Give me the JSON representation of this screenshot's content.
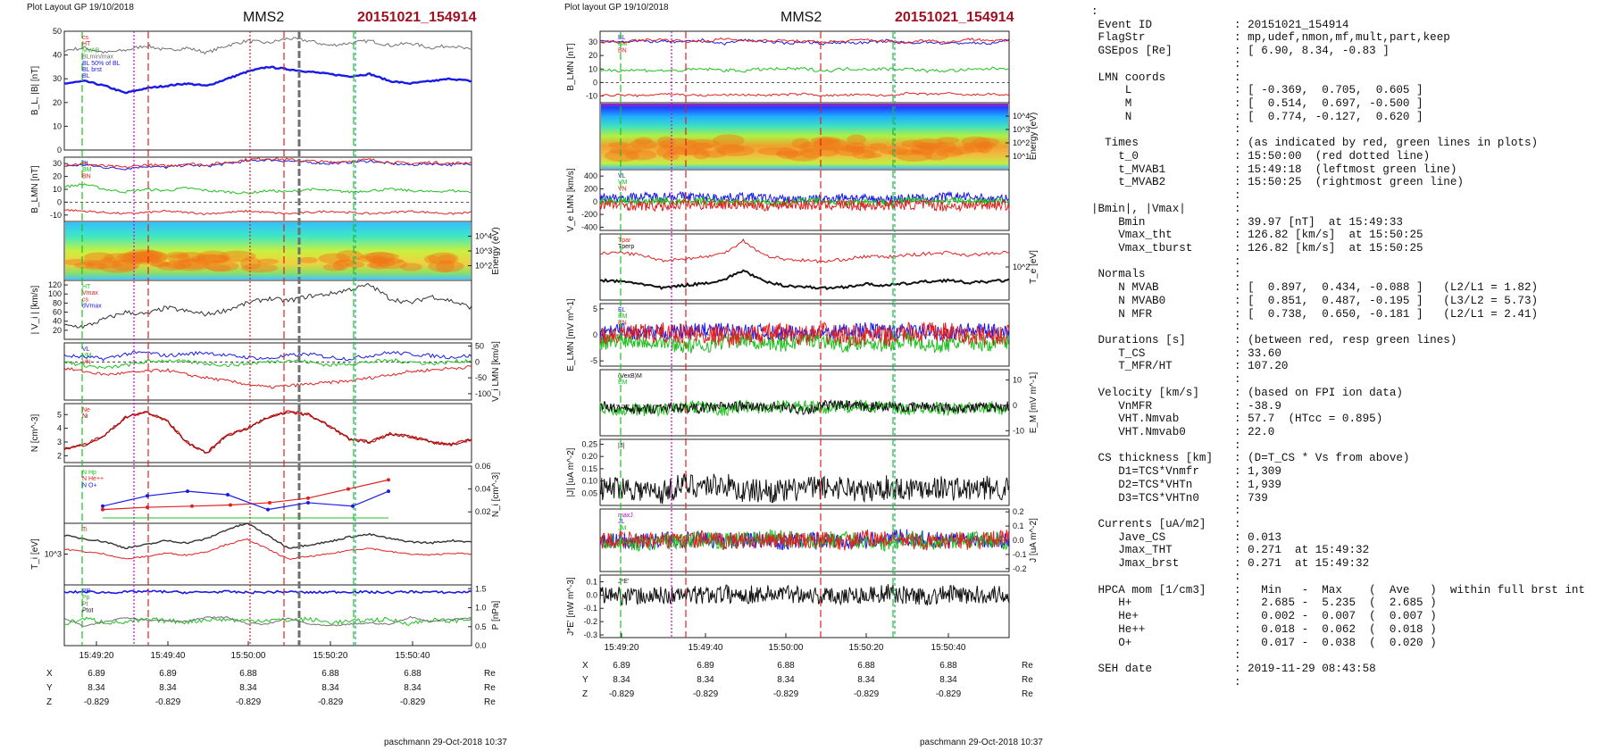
{
  "left_figure": {
    "header": "Plot Layout GP 19/10/2018",
    "sc": "MMS2",
    "event": "20151021_154914",
    "footer": "paschmann 29-Oct-2018 10:37",
    "time_ticks": [
      "15:49:20",
      "15:49:40",
      "15:50:00",
      "15:50:20",
      "15:50:40"
    ],
    "pos_rows": [
      {
        "label": "X",
        "values": [
          "6.89",
          "6.89",
          "6.88",
          "6.88",
          "6.88"
        ],
        "unit": "Re"
      },
      {
        "label": "Y",
        "values": [
          "8.34",
          "8.34",
          "8.34",
          "8.34",
          "8.34"
        ],
        "unit": "Re"
      },
      {
        "label": "Z",
        "values": [
          "-0.829",
          "-0.829",
          "-0.829",
          "-0.829",
          "-0.829"
        ],
        "unit": "Re"
      }
    ]
  },
  "right_figure": {
    "header": "Plot layout GP 19/10/2018",
    "sc": "MMS2",
    "event": "20151021_154914",
    "footer": "paschmann 29-Oct-2018 10:37",
    "time_ticks": [
      "15:49:20",
      "15:49:40",
      "15:50:00",
      "15:50:20",
      "15:50:40"
    ],
    "pos_rows": [
      {
        "label": "X",
        "values": [
          "6.89",
          "6.89",
          "6.88",
          "6.88",
          "6.88"
        ],
        "unit": "Re"
      },
      {
        "label": "Y",
        "values": [
          "8.34",
          "8.34",
          "8.34",
          "8.34",
          "8.34"
        ],
        "unit": "Re"
      },
      {
        "label": "Z",
        "values": [
          "-0.829",
          "-0.829",
          "-0.829",
          "-0.829",
          "-0.829"
        ],
        "unit": "Re"
      }
    ]
  },
  "colors": {
    "red": "#e02020",
    "green": "#20c020",
    "blue": "#1a1ae6",
    "black": "#111111",
    "gray": "#707070",
    "magenta": "#d000d0",
    "darkred": "#8a0a0a",
    "teal": "#20a0a0"
  },
  "chart_data": [
    {
      "type": "line",
      "ylabel": "B_L, |B| [nT]",
      "ylim": [
        0,
        50
      ],
      "yticks": [
        "0",
        "10",
        "20",
        "30",
        "40",
        "50"
      ],
      "legend": [
        "cs",
        "HT",
        "MVAB",
        "BLmin/max",
        "BL 50% of BL",
        "BL brst",
        "BL"
      ],
      "series": [
        {
          "name": "|B|",
          "values": [
            42,
            43,
            41,
            42,
            44,
            42,
            43,
            41,
            44,
            46,
            45,
            47,
            46,
            44,
            45,
            46,
            44,
            45,
            43,
            44,
            42
          ]
        },
        {
          "name": "BL",
          "values": [
            28,
            29,
            27,
            24,
            26,
            27,
            28,
            27,
            30,
            33,
            35,
            34,
            33,
            32,
            31,
            32,
            29,
            28,
            29,
            30,
            29
          ]
        }
      ]
    },
    {
      "type": "line",
      "ylabel": "B_LMN [nT]",
      "ylim": [
        -15,
        35
      ],
      "yticks": [
        "-10",
        "0",
        "10",
        "20",
        "30"
      ],
      "legend": [
        "BL",
        "BM",
        "BN"
      ],
      "series": [
        {
          "name": "BL",
          "values": [
            28,
            29,
            27,
            26,
            28,
            27,
            29,
            28,
            30,
            32,
            33,
            32,
            31,
            30,
            31,
            32,
            30,
            29,
            30,
            29,
            30
          ]
        },
        {
          "name": "BM",
          "values": [
            12,
            14,
            10,
            8,
            10,
            9,
            11,
            9,
            8,
            7,
            9,
            8,
            10,
            9,
            8,
            9,
            10,
            9,
            8,
            9,
            8
          ]
        },
        {
          "name": "BN",
          "values": [
            -6,
            -7,
            -8,
            -9,
            -8,
            -7,
            -8,
            -9,
            -8,
            -7,
            -8,
            -9,
            -8,
            -7,
            -8,
            -9,
            -8,
            -7,
            -8,
            -9,
            -8
          ]
        }
      ]
    },
    {
      "type": "heatmap",
      "ylabel": "Energy (eV)",
      "yticks": [
        "10^2",
        "10^3",
        "10^4"
      ]
    },
    {
      "type": "line",
      "ylabel": "| V_i | [km/s]",
      "ylim": [
        0,
        130
      ],
      "yticks": [
        "20",
        "40",
        "60",
        "80",
        "100",
        "120"
      ],
      "legend": [
        "HT",
        "Vmax",
        "cs",
        "dVmax"
      ],
      "series": [
        {
          "name": "|Vi|",
          "values": [
            30,
            28,
            45,
            60,
            55,
            70,
            62,
            55,
            65,
            80,
            90,
            85,
            95,
            100,
            110,
            120,
            90,
            80,
            95,
            85,
            70
          ]
        }
      ]
    },
    {
      "type": "line",
      "ylabel": "V_i LMN [km/s]",
      "ylim": [
        -120,
        60
      ],
      "yticks": [
        "50",
        "0",
        "-50",
        "-100"
      ],
      "legend": [
        "VL",
        "VM",
        "VN"
      ],
      "series": [
        {
          "name": "VL",
          "values": [
            20,
            15,
            10,
            25,
            30,
            20,
            25,
            30,
            20,
            15,
            10,
            20,
            25,
            15,
            10,
            20,
            30,
            25,
            20,
            15,
            20
          ]
        },
        {
          "name": "VM",
          "values": [
            0,
            -10,
            -20,
            -10,
            0,
            5,
            0,
            -5,
            -10,
            -5,
            0,
            5,
            0,
            -10,
            -5,
            0,
            5,
            0,
            -5,
            0,
            5
          ]
        },
        {
          "name": "VN",
          "values": [
            -20,
            -30,
            -40,
            -35,
            -30,
            -25,
            -40,
            -50,
            -60,
            -70,
            -80,
            -75,
            -70,
            -65,
            -60,
            -50,
            -40,
            -30,
            -25,
            -20,
            -15
          ]
        }
      ]
    },
    {
      "type": "line",
      "ylabel": "N [cm^-3]",
      "ylim": [
        1.5,
        5.8
      ],
      "yticks": [
        "2",
        "3",
        "4",
        "5"
      ],
      "legend": [
        "Ne",
        "Ni"
      ],
      "series": [
        {
          "name": "Ne",
          "values": [
            2.5,
            2.8,
            3.5,
            4.8,
            5.2,
            4.6,
            3.0,
            2.2,
            3.5,
            4.0,
            4.8,
            5.2,
            5.0,
            4.2,
            3.2,
            3.0,
            3.6,
            3.4,
            3.0,
            2.8,
            3.2
          ]
        }
      ]
    },
    {
      "type": "line",
      "ylabel": "N_i [cm^-3]",
      "ylim": [
        0.01,
        0.06
      ],
      "yticks": [
        "0.02",
        "0.04",
        "0.06"
      ],
      "legend": [
        "N Hp",
        "N He++",
        "N O+"
      ],
      "series": [
        {
          "name": "N He++",
          "values": [
            0.022,
            0.024,
            0.025,
            0.026,
            0.028,
            0.032,
            0.04,
            0.048,
            0.06,
            0.035
          ]
        },
        {
          "name": "N O+",
          "values": [
            0.025,
            0.034,
            0.038,
            0.035,
            0.022,
            0.028,
            0.025,
            0.038,
            0.018
          ]
        }
      ]
    },
    {
      "type": "line",
      "ylabel": "T_i [eV]",
      "yticks": [
        "10^3"
      ],
      "legend": [
        "Ti"
      ],
      "series": [
        {
          "name": "Ti",
          "values": [
            60,
            55,
            50,
            40,
            45,
            52,
            48,
            55,
            70,
            80,
            60,
            40,
            45,
            50,
            58,
            62,
            55,
            50,
            48,
            52,
            50
          ]
        }
      ]
    },
    {
      "type": "line",
      "ylabel": "P [nPa]",
      "ylim": [
        0,
        1.6
      ],
      "yticks": [
        "0.0",
        "0.5",
        "1.0",
        "1.5"
      ],
      "legend": [
        "PB",
        "Pp",
        "Pt",
        "Ptot"
      ],
      "series": [
        {
          "name": "Ptot",
          "values": [
            1.4,
            1.42,
            1.4,
            1.41,
            1.43,
            1.42,
            1.4,
            1.41,
            1.42,
            1.4,
            1.41,
            1.42,
            1.4,
            1.41,
            1.42,
            1.41,
            1.4,
            1.42,
            1.41,
            1.4,
            1.42
          ]
        }
      ]
    },
    {
      "type": "line",
      "ylabel": "B_LMN [nT]",
      "ylim": [
        -15,
        38
      ],
      "yticks": [
        "-10",
        "0",
        "10",
        "20",
        "30"
      ],
      "legend": [
        "BL",
        "BM",
        "BN"
      ]
    },
    {
      "type": "heatmap",
      "ylabel": "Energy (eV)",
      "yticks": [
        "10^1",
        "10^2",
        "10^3",
        "10^4"
      ]
    },
    {
      "type": "line",
      "ylabel": "V_e LMN [km/s]",
      "ylim": [
        -450,
        500
      ],
      "yticks": [
        "-400",
        "-200",
        "0",
        "200",
        "400"
      ],
      "legend": [
        "VL",
        "VM",
        "VN"
      ]
    },
    {
      "type": "line",
      "ylabel": "T_e [eV]",
      "yticks": [
        "10^2"
      ],
      "legend": [
        "Tpar",
        "Tperp"
      ]
    },
    {
      "type": "line",
      "ylabel": "E_LMN [mV m^-1]",
      "ylim": [
        -6,
        6
      ],
      "yticks": [
        "-5",
        "0",
        "5"
      ],
      "legend": [
        "EL",
        "EM",
        "EN"
      ]
    },
    {
      "type": "line",
      "ylabel": "E_M [mV m^-1]",
      "ylim": [
        -12,
        14
      ],
      "yticks": [
        "-10",
        "0",
        "10"
      ],
      "legend": [
        "(VexB)M",
        "EM"
      ]
    },
    {
      "type": "line",
      "ylabel": "|J| [uA m^-2]",
      "ylim": [
        0,
        0.27
      ],
      "yticks": [
        "0.05",
        "0.10",
        "0.15",
        "0.20",
        "0.25"
      ],
      "legend": [
        "|J|"
      ]
    },
    {
      "type": "line",
      "ylabel": "J [uA m^-2]",
      "ylim": [
        -0.22,
        0.22
      ],
      "yticks": [
        "-0.2",
        "-0.1",
        "0.0",
        "0.1",
        "0.2"
      ],
      "legend": [
        "maxJ",
        "JL",
        "JM",
        "JN"
      ]
    },
    {
      "type": "line",
      "ylabel": "J*E' [nW m^-3]",
      "ylim": [
        -0.32,
        0.15
      ],
      "yticks": [
        "-0.3",
        "-0.2",
        "-0.1",
        "0.0",
        "0.1"
      ],
      "legend": [
        "J*E'"
      ]
    }
  ],
  "summary": [
    {
      "k": ":",
      "v": ""
    },
    {
      "k": " Event ID",
      "v": ": 20151021_154914"
    },
    {
      "k": " FlagStr",
      "v": ": mp,udef,nmon,mf,mult,part,keep"
    },
    {
      "k": " GSEpos [Re]",
      "v": ": [ 6.90, 8.34, -0.83 ]"
    },
    {
      "k": "",
      "v": ":"
    },
    {
      "k": " LMN coords",
      "v": ":"
    },
    {
      "k": "     L",
      "v": ": [ -0.369,  0.705,  0.605 ]"
    },
    {
      "k": "     M",
      "v": ": [  0.514,  0.697, -0.500 ]"
    },
    {
      "k": "     N",
      "v": ": [  0.774, -0.127,  0.620 ]"
    },
    {
      "k": "",
      "v": ":"
    },
    {
      "k": "  Times",
      "v": ": (as indicated by red, green lines in plots)"
    },
    {
      "k": "    t_0",
      "v": ": 15:50:00  (red dotted line)"
    },
    {
      "k": "    t_MVAB1",
      "v": ": 15:49:18  (leftmost green line)"
    },
    {
      "k": "    t_MVAB2",
      "v": ": 15:50:25  (rightmost green line)"
    },
    {
      "k": "",
      "v": ":"
    },
    {
      "k": "|Bmin|, |Vmax|",
      "v": ":"
    },
    {
      "k": "    Bmin",
      "v": ": 39.97 [nT]  at 15:49:33"
    },
    {
      "k": "    Vmax_tht",
      "v": ": 126.82 [km/s]  at 15:50:25"
    },
    {
      "k": "    Vmax_tburst",
      "v": ": 126.82 [km/s]  at 15:50:25"
    },
    {
      "k": "",
      "v": ":"
    },
    {
      "k": " Normals",
      "v": ":"
    },
    {
      "k": "    N MVAB",
      "v": ": [  0.897,  0.434, -0.088 ]   (L2/L1 = 1.82)"
    },
    {
      "k": "    N MVAB0",
      "v": ": [  0.851,  0.487, -0.195 ]   (L3/L2 = 5.73)"
    },
    {
      "k": "    N MFR",
      "v": ": [  0.738,  0.650, -0.181 ]   (L2/L1 = 2.41)"
    },
    {
      "k": "",
      "v": ":"
    },
    {
      "k": " Durations [s]",
      "v": ": (between red, resp green lines)"
    },
    {
      "k": "    T_CS",
      "v": ": 33.60"
    },
    {
      "k": "    T_MFR/HT",
      "v": ": 107.20"
    },
    {
      "k": "",
      "v": ":"
    },
    {
      "k": " Velocity [km/s]",
      "v": ": (based on FPI ion data)"
    },
    {
      "k": "    VnMFR",
      "v": ": -38.9"
    },
    {
      "k": "    VHT.Nmvab",
      "v": ": 57.7  (HTcc = 0.895)"
    },
    {
      "k": "    VHT.Nmvab0",
      "v": ": 22.0"
    },
    {
      "k": "",
      "v": ":"
    },
    {
      "k": " CS thickness [km]",
      "v": ": (D=T_CS * Vs from above)"
    },
    {
      "k": "    D1=TCS*Vnmfr",
      "v": ": 1,309"
    },
    {
      "k": "    D2=TCS*VHTn",
      "v": ": 1,939"
    },
    {
      "k": "    D3=TCS*VHTn0",
      "v": ": 739"
    },
    {
      "k": "",
      "v": ":"
    },
    {
      "k": " Currents [uA/m2]",
      "v": ":"
    },
    {
      "k": "    Jave_CS",
      "v": ": 0.013"
    },
    {
      "k": "    Jmax_THT",
      "v": ": 0.271  at 15:49:32"
    },
    {
      "k": "    Jmax_brst",
      "v": ": 0.271  at 15:49:32"
    },
    {
      "k": "",
      "v": ":"
    },
    {
      "k": " HPCA mom [1/cm3]",
      "v": ":   Min   -  Max    (  Ave   )  within full brst int"
    },
    {
      "k": "    H+",
      "v": ":   2.685 -  5.235  (  2.685 )"
    },
    {
      "k": "    He+",
      "v": ":   0.002 -  0.007  (  0.007 )"
    },
    {
      "k": "    He++",
      "v": ":   0.018 -  0.062  (  0.018 )"
    },
    {
      "k": "    O+",
      "v": ":   0.017 -  0.038  (  0.020 )"
    },
    {
      "k": "",
      "v": ":"
    },
    {
      "k": " SEH date",
      "v": ": 2019-11-29 08:43:58"
    },
    {
      "k": "",
      "v": ":"
    }
  ]
}
